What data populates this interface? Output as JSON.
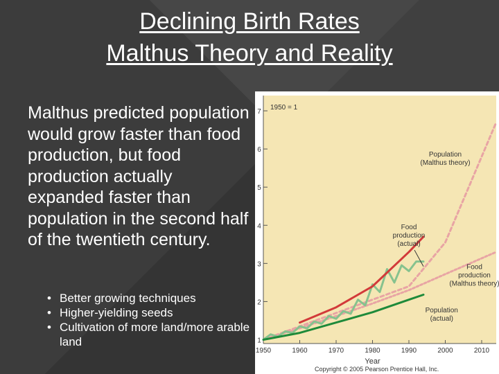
{
  "slide": {
    "title_line1": "Declining Birth Rates",
    "title_line2": "Malthus Theory and Reality",
    "body": "Malthus predicted population would grow faster than food production, but food production actually expanded faster than population in the second half of the twentieth century.",
    "bullets": [
      "Better growing techniques",
      "Higher-yielding seeds",
      "Cultivation of more land/more arable land"
    ]
  },
  "chart_data": {
    "type": "line",
    "title": "",
    "xlabel": "Year",
    "ylabel": "",
    "index_note": "1950 = 1",
    "xlim": [
      1950,
      2014
    ],
    "ylim": [
      0.9,
      7.4
    ],
    "x_ticks": [
      1950,
      1960,
      1970,
      1980,
      1990,
      2000,
      2010
    ],
    "y_ticks": [
      1,
      2,
      3,
      4,
      5,
      6,
      7
    ],
    "background": "#f5e6b4",
    "series": [
      {
        "name": "Population (Malthus theory)",
        "color": "#e8a4a4",
        "style": "dashed",
        "x": [
          1950,
          1960,
          1970,
          1980,
          1990,
          2000,
          2014
        ],
        "y": [
          1,
          1.35,
          1.7,
          2.05,
          2.4,
          3.55,
          6.7
        ]
      },
      {
        "name": "Food production (Malthus theory)",
        "color": "#e8a4a4",
        "style": "dotted",
        "x": [
          1950,
          1960,
          1970,
          1980,
          1990,
          2000,
          2014
        ],
        "y": [
          1,
          1.3,
          1.62,
          1.95,
          2.3,
          2.72,
          3.3
        ]
      },
      {
        "name": "Food production (actual)",
        "color": "#86c28e",
        "style": "solid",
        "x": [
          1950,
          1952,
          1954,
          1956,
          1958,
          1960,
          1962,
          1964,
          1966,
          1968,
          1970,
          1972,
          1974,
          1976,
          1978,
          1980,
          1982,
          1984,
          1986,
          1988,
          1990,
          1992,
          1994
        ],
        "y": [
          1.0,
          1.14,
          1.08,
          1.22,
          1.18,
          1.35,
          1.3,
          1.48,
          1.42,
          1.62,
          1.55,
          1.75,
          1.68,
          2.05,
          1.9,
          2.45,
          2.25,
          2.85,
          2.5,
          2.95,
          2.8,
          3.05,
          3.05
        ]
      },
      {
        "name": "Population (actual)",
        "color": "#1e8a3a",
        "style": "solid",
        "x": [
          1950,
          1960,
          1970,
          1980,
          1990,
          1994
        ],
        "y": [
          1.0,
          1.18,
          1.45,
          1.72,
          2.05,
          2.18
        ]
      },
      {
        "name": "Population (actual, with Malthus growth projection)",
        "color": "#d23a3a",
        "style": "solid",
        "x": [
          1960,
          1970,
          1980,
          1990,
          1994
        ],
        "y": [
          1.45,
          1.85,
          2.4,
          3.3,
          3.7
        ]
      }
    ],
    "annotations": [
      {
        "text_lines": [
          "Population",
          "(Malthus theory)"
        ],
        "x": 2000,
        "y": 5.8
      },
      {
        "text_lines": [
          "Food",
          "production",
          "(actual)"
        ],
        "x": 1990,
        "y": 3.9
      },
      {
        "text_lines": [
          "Food",
          "production",
          "(Malthus theory)"
        ],
        "x": 2008,
        "y": 2.85
      },
      {
        "text_lines": [
          "Population",
          "(actual)"
        ],
        "x": 1999,
        "y": 1.72
      }
    ],
    "copyright": "Copyright © 2005 Pearson Prentice Hall, Inc."
  }
}
